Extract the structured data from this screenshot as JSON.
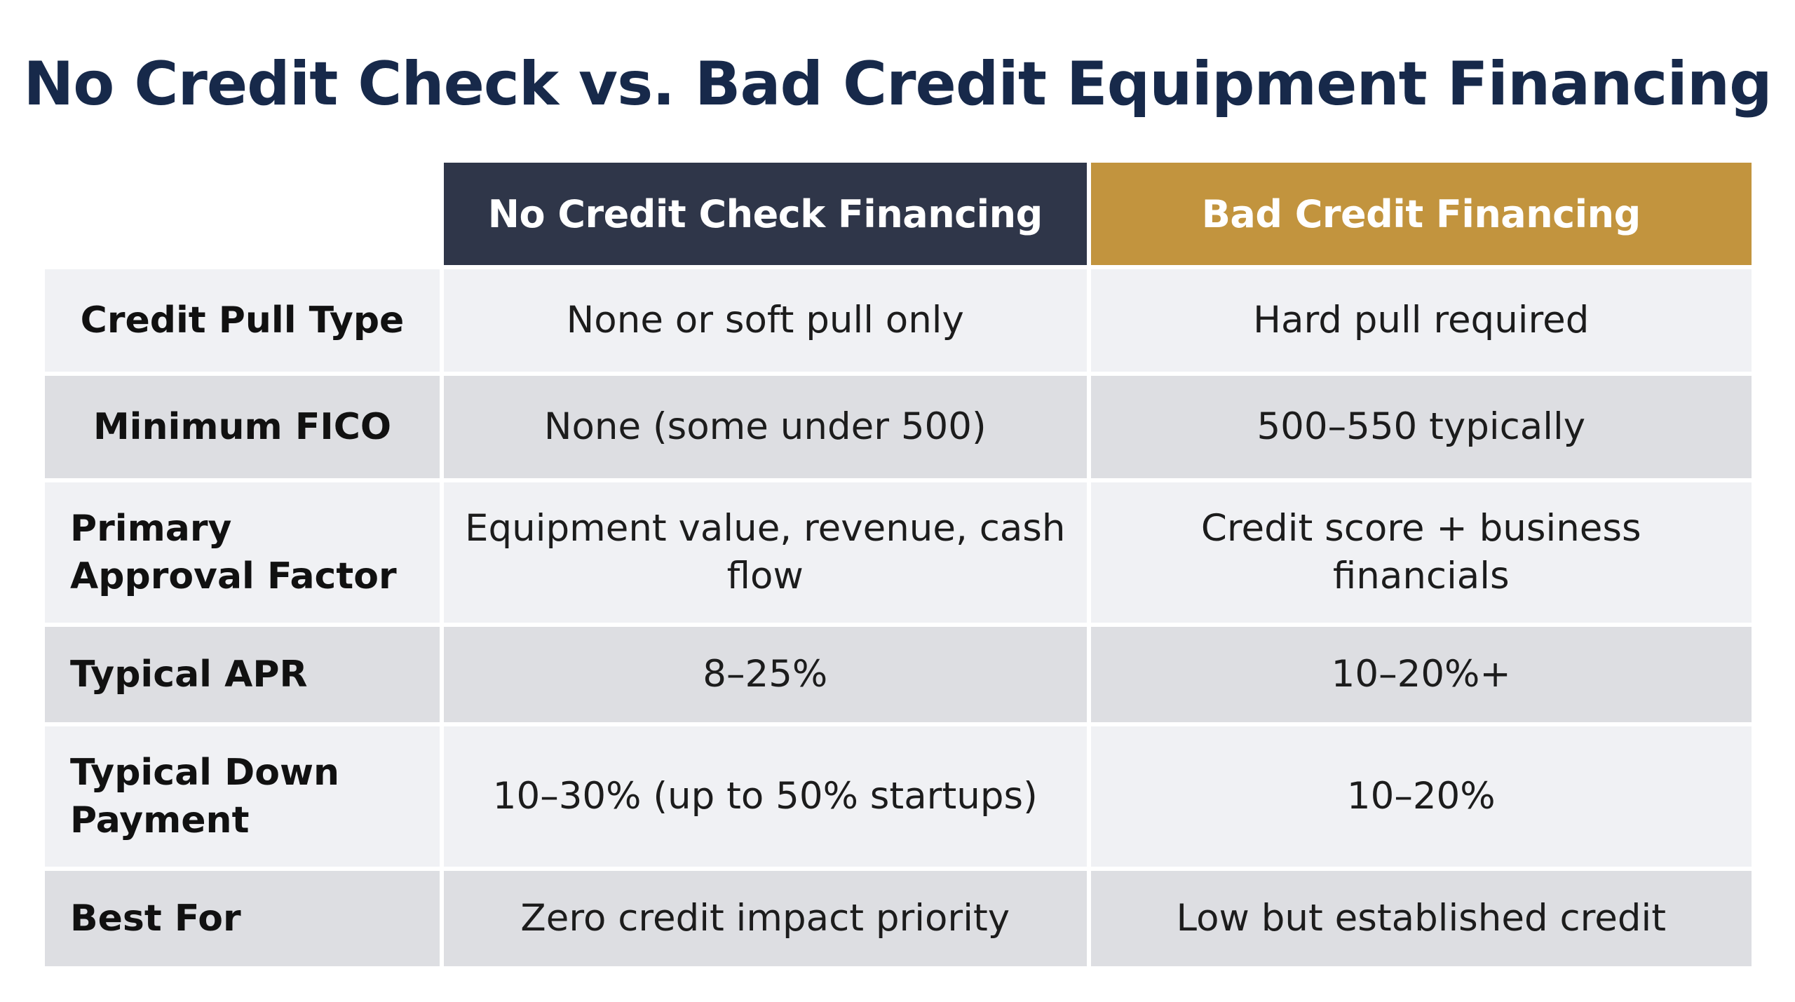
{
  "title": "No Credit Check vs. Bad Credit Equipment Financing",
  "colors": {
    "title": "#17294a",
    "header_no_credit_check": "#2f3649",
    "header_bad_credit": "#c2943e",
    "row_light": "#f0f1f4",
    "row_dark": "#dddee2"
  },
  "table": {
    "columns": [
      "",
      "No Credit Check Financing",
      "Bad Credit Financing"
    ],
    "rows": [
      {
        "label": "Credit Pull Type",
        "no_credit_check": "None or soft pull only",
        "bad_credit": "Hard pull required"
      },
      {
        "label": "Minimum FICO",
        "no_credit_check": "None (some under 500)",
        "bad_credit": "500–550 typically"
      },
      {
        "label": "Primary Approval Factor",
        "no_credit_check": "Equipment value, revenue, cash flow",
        "bad_credit": "Credit score + business financials"
      },
      {
        "label": "Typical APR",
        "no_credit_check": "8–25%",
        "bad_credit": "10–20%+"
      },
      {
        "label": "Typical Down Payment",
        "no_credit_check": "10–30% (up to 50% startups)",
        "bad_credit": "10–20%"
      },
      {
        "label": "Best For",
        "no_credit_check": "Zero credit impact priority",
        "bad_credit": "Low but established credit"
      }
    ]
  }
}
